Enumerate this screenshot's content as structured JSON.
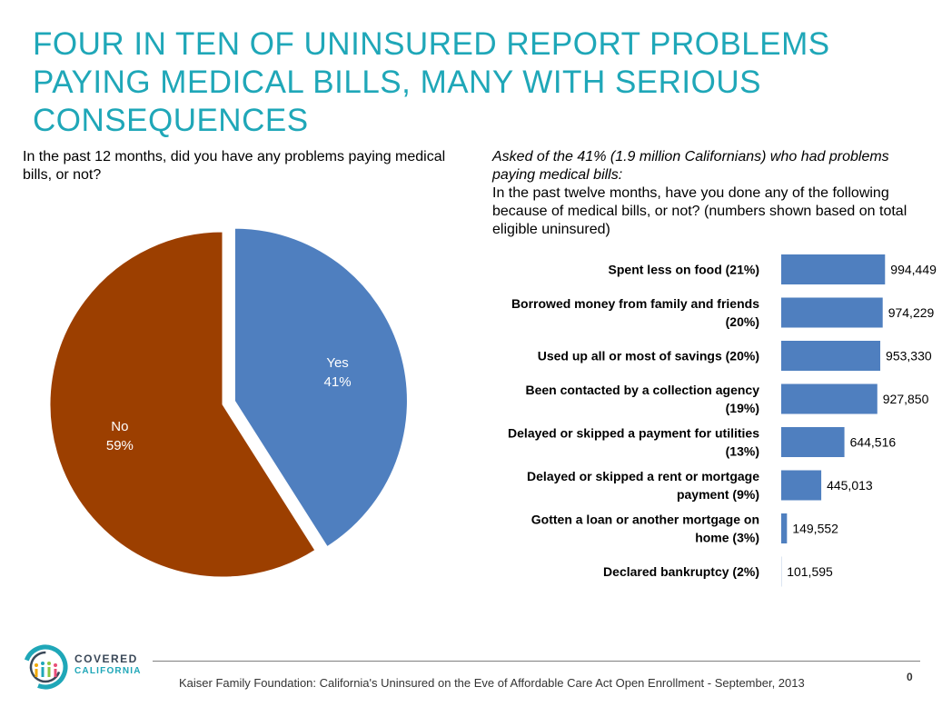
{
  "title": "FOUR IN TEN OF UNINSURED REPORT PROBLEMS PAYING MEDICAL BILLS, MANY WITH SERIOUS CONSEQUENCES",
  "colors": {
    "title": "#1fa7b8",
    "yes": "#4f7fbf",
    "no": "#9c3f00",
    "bar": "#4f7fbf"
  },
  "pie_question": "In the past 12 months, did you have any problems paying medical bills, or not?",
  "bar_question": {
    "intro": "Asked of the 41% (1.9 million Californians) who had problems paying medical bills:",
    "text": "In the past twelve months, have you done any of the following because of medical bills, or not? (numbers shown based on total eligible uninsured)"
  },
  "chart_data": [
    {
      "type": "pie",
      "title": "In the past 12 months, did you have any problems paying medical bills, or not?",
      "slices": [
        {
          "name": "Yes",
          "value": 41,
          "label": "41%"
        },
        {
          "name": "No",
          "value": 59,
          "label": "59%"
        }
      ]
    },
    {
      "type": "bar",
      "orientation": "horizontal",
      "title": "In the past twelve months, have you done any of the following because of medical bills, or not?",
      "categories": [
        [
          "Spent less on food (21%)"
        ],
        [
          "Borrowed money from family and friends",
          "(20%)"
        ],
        [
          "Used up all or most of savings (20%)"
        ],
        [
          "Been contacted by a collection agency",
          "(19%)"
        ],
        [
          "Delayed or skipped a payment for utilities",
          "(13%)"
        ],
        [
          "Delayed or skipped a rent or mortgage",
          "payment (9%)"
        ],
        [
          "Gotten a loan or another mortgage on",
          "home (3%)"
        ],
        [
          "Declared bankruptcy (2%)"
        ]
      ],
      "values": [
        994449,
        974229,
        953330,
        927850,
        644516,
        445013,
        149552,
        101595
      ],
      "value_labels": [
        "994,449",
        "974,229",
        "953,330",
        "927,850",
        "644,516",
        "445,013",
        "149,552",
        "101,595"
      ],
      "xlim": [
        100000,
        1000000
      ]
    }
  ],
  "footer": {
    "source": "Kaiser Family Foundation: California's Uninsured on the Eve of Affordable Care Act Open Enrollment  - September, 2013",
    "page": "0",
    "logo_line1": "COVERED",
    "logo_line2": "CALIFORNIA"
  }
}
